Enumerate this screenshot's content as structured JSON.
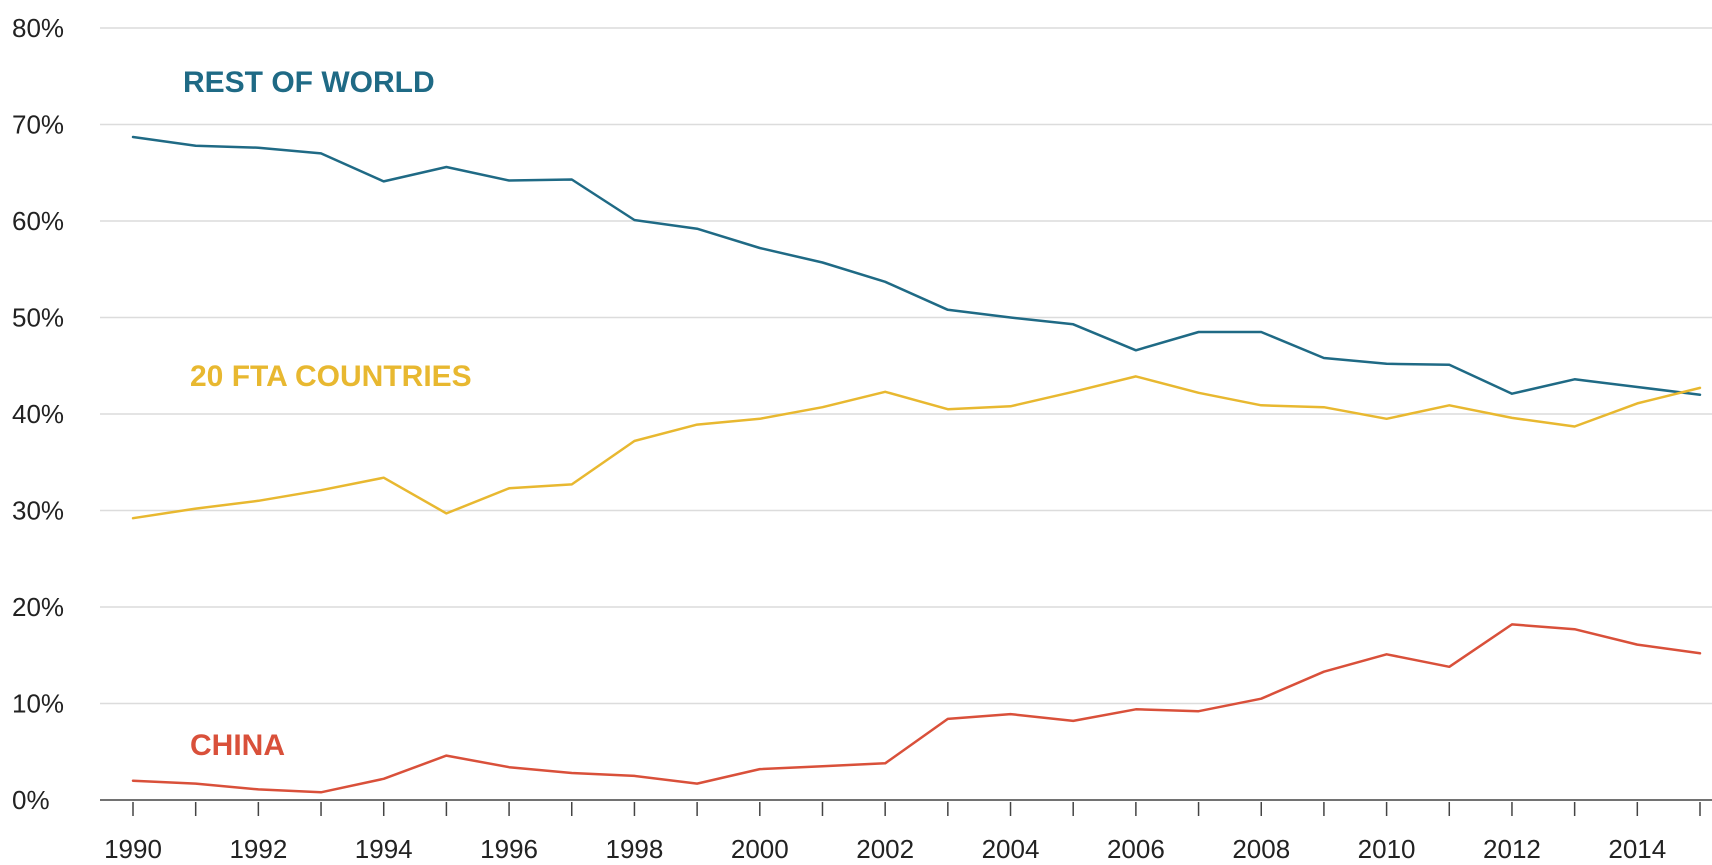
{
  "chart_data": {
    "type": "line",
    "title": "",
    "xlabel": "",
    "ylabel": "",
    "x": [
      1990,
      1991,
      1992,
      1993,
      1994,
      1995,
      1996,
      1997,
      1998,
      1999,
      2000,
      2001,
      2002,
      2003,
      2004,
      2005,
      2006,
      2007,
      2008,
      2009,
      2010,
      2011,
      2012,
      2013,
      2014,
      2015
    ],
    "xlim": [
      1990,
      2015
    ],
    "ylim": [
      0,
      80
    ],
    "x_ticks": [
      1990,
      1991,
      1992,
      1993,
      1994,
      1995,
      1996,
      1997,
      1998,
      1999,
      2000,
      2001,
      2002,
      2003,
      2004,
      2005,
      2006,
      2007,
      2008,
      2009,
      2010,
      2011,
      2012,
      2013,
      2014,
      2015
    ],
    "x_tick_labels": [
      {
        "x": 1990,
        "label": "1990"
      },
      {
        "x": 1992,
        "label": "1992"
      },
      {
        "x": 1994,
        "label": "1994"
      },
      {
        "x": 1996,
        "label": "1996"
      },
      {
        "x": 1998,
        "label": "1998"
      },
      {
        "x": 2000,
        "label": "2000"
      },
      {
        "x": 2002,
        "label": "2002"
      },
      {
        "x": 2004,
        "label": "2004"
      },
      {
        "x": 2006,
        "label": "2006"
      },
      {
        "x": 2008,
        "label": "2008"
      },
      {
        "x": 2010,
        "label": "2010"
      },
      {
        "x": 2012,
        "label": "2012"
      },
      {
        "x": 2014,
        "label": "2014"
      }
    ],
    "y_ticks": [
      {
        "value": 0,
        "label": "0%"
      },
      {
        "value": 10,
        "label": "10%"
      },
      {
        "value": 20,
        "label": "20%"
      },
      {
        "value": 30,
        "label": "30%"
      },
      {
        "value": 40,
        "label": "40%"
      },
      {
        "value": 50,
        "label": "50%"
      },
      {
        "value": 60,
        "label": "60%"
      },
      {
        "value": 70,
        "label": "70%"
      },
      {
        "value": 80,
        "label": "80%"
      }
    ],
    "grid": true,
    "legend": "inline labels",
    "series": [
      {
        "name": "REST OF WORLD",
        "color": "#1f6a85",
        "values": [
          68.7,
          67.8,
          67.6,
          67.0,
          64.1,
          65.6,
          64.2,
          64.3,
          60.1,
          59.2,
          57.2,
          55.7,
          53.7,
          50.8,
          50.0,
          49.3,
          46.6,
          48.5,
          48.5,
          45.8,
          45.2,
          45.1,
          42.1,
          43.6,
          42.8,
          42.0
        ]
      },
      {
        "name": "20 FTA COUNTRIES",
        "color": "#e8b830",
        "values": [
          29.2,
          30.2,
          31.0,
          32.1,
          33.4,
          29.7,
          32.3,
          32.7,
          37.2,
          38.9,
          39.5,
          40.7,
          42.3,
          40.5,
          40.8,
          42.3,
          43.9,
          42.2,
          40.9,
          40.7,
          39.5,
          40.9,
          39.6,
          38.7,
          41.1,
          42.7
        ]
      },
      {
        "name": "CHINA",
        "color": "#d9503a",
        "values": [
          2.0,
          1.7,
          1.1,
          0.8,
          2.2,
          4.6,
          3.4,
          2.8,
          2.5,
          1.7,
          3.2,
          3.5,
          3.8,
          8.4,
          8.9,
          8.2,
          9.4,
          9.2,
          10.5,
          13.3,
          15.1,
          13.8,
          18.2,
          17.7,
          16.1,
          15.2
        ]
      }
    ]
  }
}
